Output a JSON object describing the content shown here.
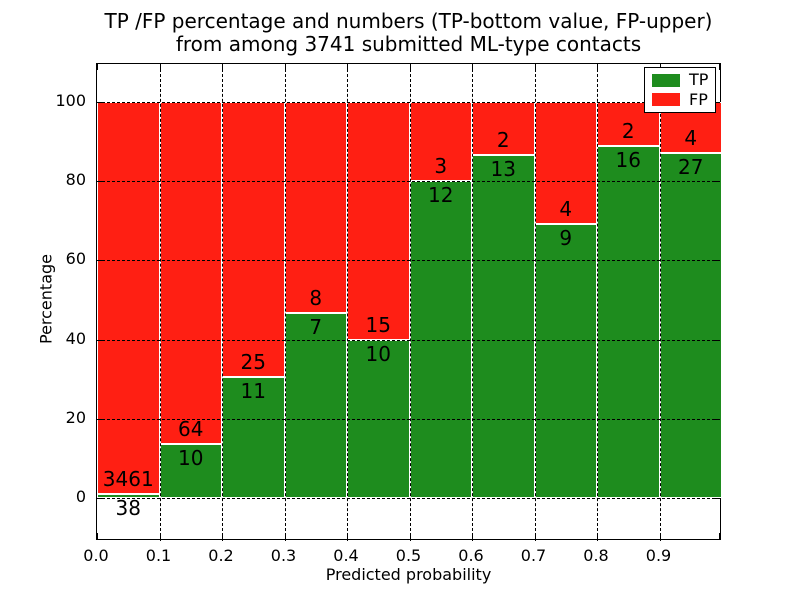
{
  "title": {
    "line1": "TP /FP percentage and numbers (TP-bottom value, FP-upper)",
    "line2": "from among 3741 submitted ML-type contacts"
  },
  "axes": {
    "xlabel": "Predicted probability",
    "ylabel": "Percentage",
    "x_tick_labels": [
      "0.0",
      "0.1",
      "0.2",
      "0.3",
      "0.4",
      "0.5",
      "0.6",
      "0.7",
      "0.8",
      "0.9"
    ],
    "y_tick_values": [
      0,
      20,
      40,
      60,
      80,
      100
    ]
  },
  "legend": {
    "items": [
      {
        "label": "TP",
        "color": "#1e8c1e"
      },
      {
        "label": "FP",
        "color": "#ff1f13"
      }
    ]
  },
  "colors": {
    "tp": "#1e8c1e",
    "fp": "#ff1f13",
    "bar_edge": "#ffffff",
    "grid": "#000000"
  },
  "chart_data": {
    "type": "bar",
    "stacked": true,
    "normalized_to_percent": true,
    "title": "TP /FP percentage and numbers (TP-bottom value, FP-upper) from among 3741 submitted ML-type contacts",
    "xlabel": "Predicted probability",
    "ylabel": "Percentage",
    "xlim": [
      0.0,
      1.0
    ],
    "ylim": [
      -11,
      110
    ],
    "grid": true,
    "legend_position": "upper right",
    "bin_edges": [
      0.0,
      0.1,
      0.2,
      0.3,
      0.4,
      0.5,
      0.6,
      0.7,
      0.8,
      0.9,
      1.0
    ],
    "series": [
      {
        "name": "TP",
        "counts": [
          38,
          10,
          11,
          7,
          10,
          12,
          13,
          9,
          16,
          27
        ]
      },
      {
        "name": "FP",
        "counts": [
          3461,
          64,
          25,
          8,
          15,
          3,
          2,
          4,
          2,
          4
        ]
      }
    ],
    "total_contacts": 3741
  }
}
